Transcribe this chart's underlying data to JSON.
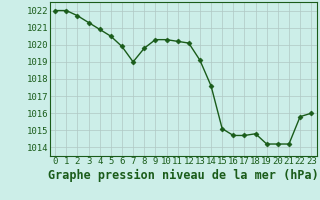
{
  "x": [
    0,
    1,
    2,
    3,
    4,
    5,
    6,
    7,
    8,
    9,
    10,
    11,
    12,
    13,
    14,
    15,
    16,
    17,
    18,
    19,
    20,
    21,
    22,
    23
  ],
  "y": [
    1022.0,
    1022.0,
    1021.7,
    1021.3,
    1020.9,
    1020.5,
    1019.9,
    1019.0,
    1019.8,
    1020.3,
    1020.3,
    1020.2,
    1020.1,
    1019.1,
    1017.6,
    1015.1,
    1014.7,
    1014.7,
    1014.8,
    1014.2,
    1014.2,
    1014.2,
    1015.8,
    1016.0
  ],
  "line_color": "#1a5c1a",
  "marker": "D",
  "marker_size": 2.5,
  "bg_color": "#cceee8",
  "grid_color": "#b0c8c4",
  "ylabel_ticks": [
    1014,
    1015,
    1016,
    1017,
    1018,
    1019,
    1020,
    1021,
    1022
  ],
  "ylim": [
    1013.5,
    1022.5
  ],
  "xlim": [
    -0.5,
    23.5
  ],
  "xlabel": "Graphe pression niveau de la mer (hPa)",
  "tick_fontsize": 6.5,
  "label_fontsize": 8.5
}
